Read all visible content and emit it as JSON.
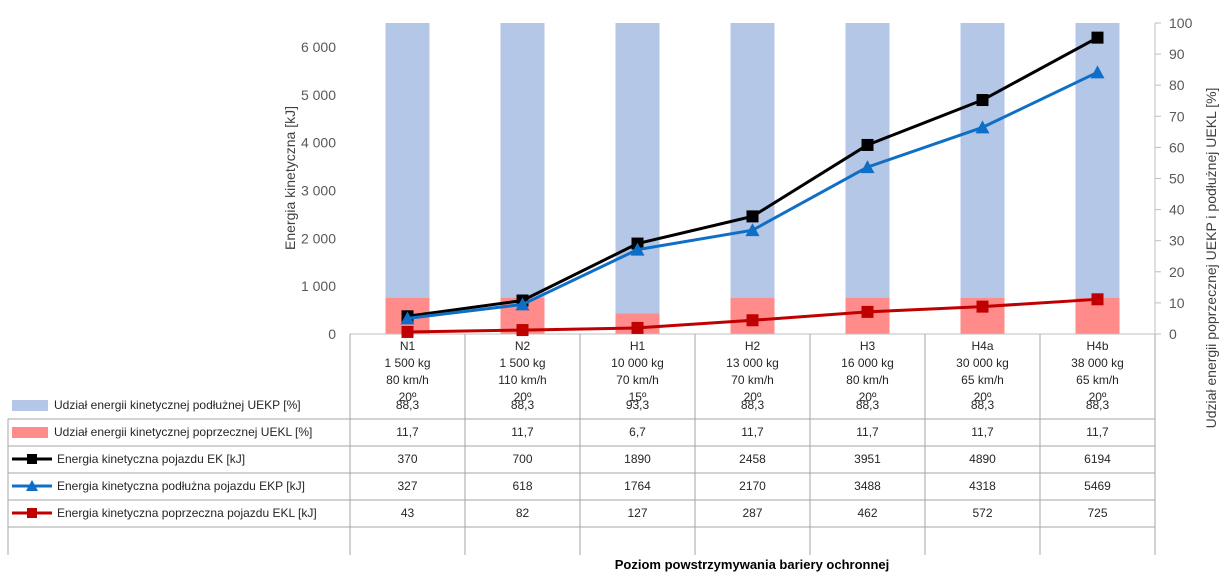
{
  "chart_data": {
    "type": "bar",
    "categories": [
      [
        "N1",
        "1 500 kg",
        "80 km/h",
        "20º"
      ],
      [
        "N2",
        "1 500 kg",
        "110 km/h",
        "20º"
      ],
      [
        "H1",
        "10 000 kg",
        "70 km/h",
        "15º"
      ],
      [
        "H2",
        "13 000 kg",
        "70 km/h",
        "20º"
      ],
      [
        "H3",
        "16 000 kg",
        "80 km/h",
        "20º"
      ],
      [
        "H4a",
        "30 000 kg",
        "65 km/h",
        "20º"
      ],
      [
        "H4b",
        "38 000 kg",
        "65 km/h",
        "20º"
      ]
    ],
    "ylabel": "Energia kinetyczna [kJ]",
    "y2label": "Udział energii poprzecznej UEKP i podłużnej UEKL [%]",
    "xlabel": "Poziom powstrzymywania bariery ochronnej",
    "ylim": [
      0,
      6500
    ],
    "y2lim": [
      0,
      100
    ],
    "yticks": [
      "0",
      "1 000",
      "2 000",
      "3 000",
      "4 000",
      "5 000",
      "6 000"
    ],
    "y2ticks": [
      "0",
      "10",
      "20",
      "30",
      "40",
      "50",
      "60",
      "70",
      "80",
      "90",
      "100"
    ],
    "series": [
      {
        "name": "Udział energii kinetycznej  podłużnej UEKP [%]",
        "kind": "stacked-bar",
        "axis": "right",
        "color": "#b4c7e7",
        "values": [
          88.3,
          88.3,
          93.3,
          88.3,
          88.3,
          88.3,
          88.3
        ],
        "labels": [
          "88,3",
          "88,3",
          "93,3",
          "88,3",
          "88,3",
          "88,3",
          "88,3"
        ]
      },
      {
        "name": "Udział energii kinetycznej poprzecznej UEKL [%]",
        "kind": "stacked-bar",
        "axis": "right",
        "color": "#ff8b8b",
        "values": [
          11.7,
          11.7,
          6.7,
          11.7,
          11.7,
          11.7,
          11.7
        ],
        "labels": [
          "11,7",
          "11,7",
          "6,7",
          "11,7",
          "11,7",
          "11,7",
          "11,7"
        ]
      },
      {
        "name": "Energia kinetyczna pojazdu EK [kJ]",
        "kind": "line",
        "axis": "left",
        "color": "#000000",
        "marker": "square",
        "values": [
          370,
          700,
          1890,
          2458,
          3951,
          4890,
          6194
        ],
        "labels": [
          "370",
          "700",
          "1890",
          "2458",
          "3951",
          "4890",
          "6194"
        ]
      },
      {
        "name": "Energia kinetyczna podłużna pojazdu EKP [kJ]",
        "kind": "line",
        "axis": "left",
        "color": "#0f6fc6",
        "marker": "triangle",
        "values": [
          327,
          618,
          1764,
          2170,
          3488,
          4318,
          5469
        ],
        "labels": [
          "327",
          "618",
          "1764",
          "2170",
          "3488",
          "4318",
          "5469"
        ]
      },
      {
        "name": "Energia kinetyczna poprzeczna pojazdu EKL [kJ]",
        "kind": "line",
        "axis": "left",
        "color": "#c00000",
        "marker": "square",
        "values": [
          43,
          82,
          127,
          287,
          462,
          572,
          725
        ],
        "labels": [
          "43",
          "82",
          "127",
          "287",
          "462",
          "572",
          "725"
        ]
      }
    ]
  }
}
